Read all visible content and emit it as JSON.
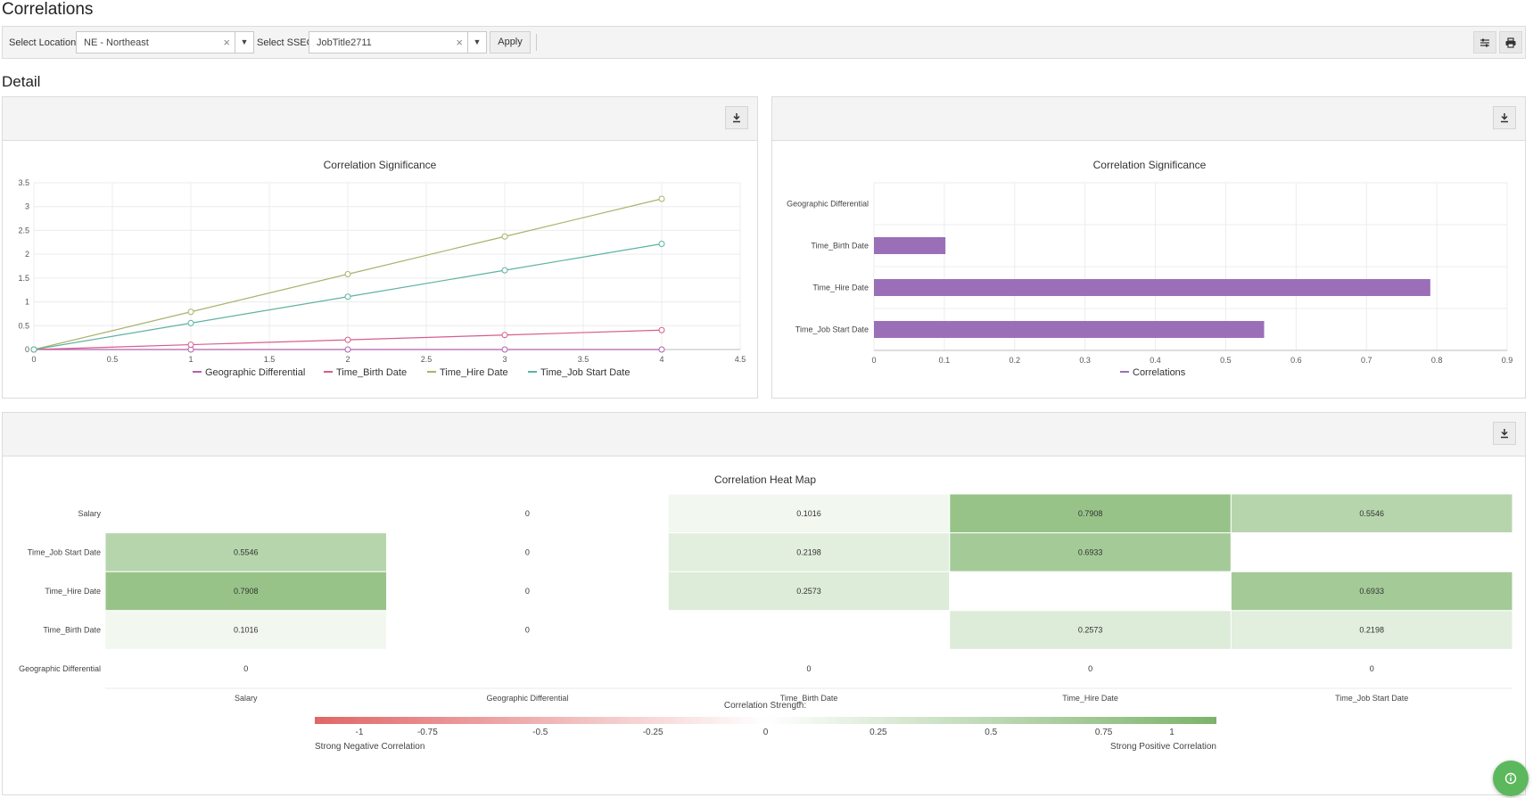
{
  "page": {
    "title": "Correlations",
    "section_title": "Detail"
  },
  "filters": {
    "location_label": "Select Location",
    "location_value": "NE - Northeast",
    "sseg_label": "Select SSEG",
    "sseg_value": "JobTitle2711",
    "apply_label": "Apply",
    "clear_glyph": "×",
    "dropdown_glyph": "▼"
  },
  "toolbar": {
    "filter_icon": "sliders-icon",
    "print_icon": "print-icon",
    "download_icon": "download-icon"
  },
  "colors": {
    "geo": "#b15fb3",
    "birth": "#d55e8c",
    "hire": "#a9b26a",
    "job": "#5cb3a0",
    "bar": "#9b6fb8",
    "heat_neg": "#e06666",
    "heat_pos": "#7cb36a",
    "fab": "#5cb85c"
  },
  "line_chart": {
    "title": "Correlation Significance",
    "x_ticks": [
      "0",
      "0.5",
      "1",
      "1.5",
      "2",
      "2.5",
      "3",
      "3.5",
      "4",
      "4.5"
    ],
    "y_ticks": [
      "0",
      "0.5",
      "1",
      "1.5",
      "2",
      "2.5",
      "3",
      "3.5"
    ],
    "legend": [
      "Geographic Differential",
      "Time_Birth Date",
      "Time_Hire Date",
      "Time_Job Start Date"
    ]
  },
  "bar_chart": {
    "title": "Correlation Significance",
    "x_ticks": [
      "0",
      "0.1",
      "0.2",
      "0.3",
      "0.4",
      "0.5",
      "0.6",
      "0.7",
      "0.8",
      "0.9"
    ],
    "legend": "Correlations"
  },
  "heatmap": {
    "title": "Correlation Heat Map",
    "strength_label": "Correlation Strength:",
    "scale_ticks": [
      "-1",
      "-0.75",
      "-0.5",
      "-0.25",
      "0",
      "0.25",
      "0.5",
      "0.75",
      "1"
    ],
    "neg_label": "Strong Negative Correlation",
    "pos_label": "Strong Positive Correlation"
  },
  "chart_data": [
    {
      "type": "line",
      "title": "Correlation Significance",
      "xlim": [
        0,
        4.5
      ],
      "ylim": [
        0,
        3.5
      ],
      "x": [
        0,
        1,
        2,
        3,
        4
      ],
      "series": [
        {
          "name": "Geographic Differential",
          "values": [
            0,
            0,
            0,
            0,
            0
          ]
        },
        {
          "name": "Time_Birth Date",
          "values": [
            0,
            0.1016,
            0.2032,
            0.3048,
            0.4064
          ]
        },
        {
          "name": "Time_Hire Date",
          "values": [
            0,
            0.7908,
            1.5816,
            2.3724,
            3.1632
          ]
        },
        {
          "name": "Time_Job Start Date",
          "values": [
            0,
            0.5546,
            1.1092,
            1.6638,
            2.2184
          ]
        }
      ],
      "legend": "bottom",
      "grid": true
    },
    {
      "type": "bar",
      "orientation": "horizontal",
      "title": "Correlation Significance",
      "categories": [
        "Geographic Differential",
        "Time_Birth Date",
        "Time_Hire Date",
        "Time_Job Start Date"
      ],
      "series": [
        {
          "name": "Correlations",
          "values": [
            0,
            0.1016,
            0.7908,
            0.5546
          ]
        }
      ],
      "xlim": [
        0,
        0.9
      ],
      "legend": "bottom",
      "grid": true
    },
    {
      "type": "heatmap",
      "title": "Correlation Heat Map",
      "columns": [
        "Salary",
        "Geographic Differential",
        "Time_Birth Date",
        "Time_Hire Date",
        "Time_Job Start Date"
      ],
      "rows": [
        "Salary",
        "Time_Job Start Date",
        "Time_Hire Date",
        "Time_Birth Date",
        "Geographic Differential"
      ],
      "values": [
        [
          null,
          0,
          0.1016,
          0.7908,
          0.5546
        ],
        [
          0.5546,
          0,
          0.2198,
          0.6933,
          null
        ],
        [
          0.7908,
          0,
          0.2573,
          null,
          0.6933
        ],
        [
          0.1016,
          0,
          null,
          0.2573,
          0.2198
        ],
        [
          0,
          null,
          0,
          0,
          0
        ]
      ],
      "labels": [
        [
          "",
          "0",
          "0.1016",
          "0.7908",
          "0.5546"
        ],
        [
          "0.5546",
          "0",
          "0.2198",
          "0.6933",
          ""
        ],
        [
          "0.7908",
          "0",
          "0.2573",
          "",
          "0.6933"
        ],
        [
          "0.1016",
          "0",
          "",
          "0.2573",
          "0.2198"
        ],
        [
          "0",
          "",
          "0",
          "0",
          "0"
        ]
      ],
      "scale": [
        -1,
        1
      ]
    }
  ]
}
